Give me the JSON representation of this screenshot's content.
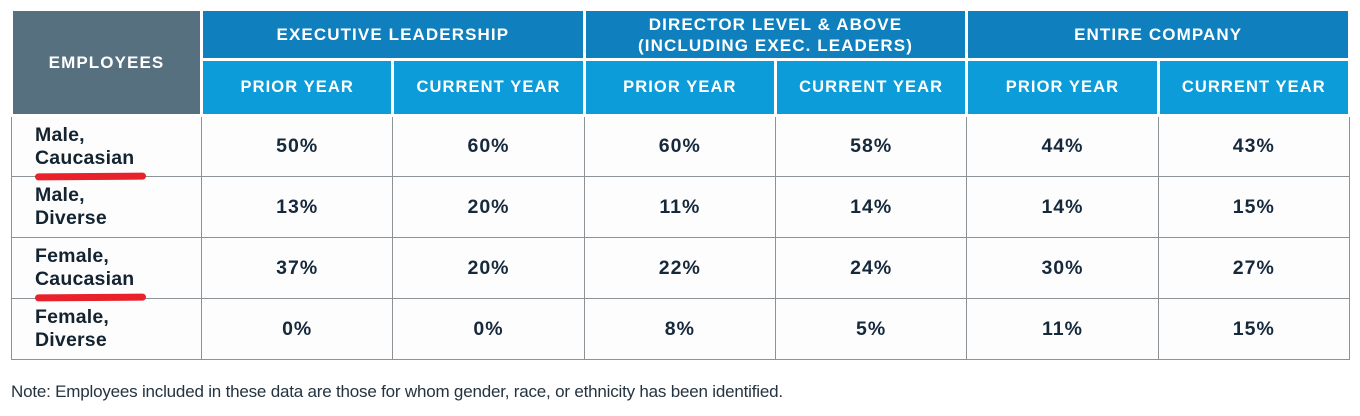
{
  "colors": {
    "row_header_bg": "#57707f",
    "group_header_bg": "#0f80bd",
    "sub_header_bg": "#0c9cd9",
    "header_text": "#ffffff",
    "body_text": "#16293b",
    "grid_border": "#8d9297",
    "underline_red": "#e8212b"
  },
  "table": {
    "row_header_label": "EMPLOYEES",
    "groups": [
      {
        "line1": "EXECUTIVE LEADERSHIP",
        "line2": ""
      },
      {
        "line1": "DIRECTOR LEVEL & ABOVE",
        "line2": "(INCLUDING EXEC. LEADERS)"
      },
      {
        "line1": "ENTIRE COMPANY",
        "line2": ""
      }
    ],
    "year_columns": [
      "PRIOR YEAR",
      "CURRENT YEAR"
    ],
    "rows": [
      {
        "label_line1": "Male,",
        "label_line2": "Caucasian",
        "underlined": true,
        "values": [
          "50%",
          "60%",
          "60%",
          "58%",
          "44%",
          "43%"
        ]
      },
      {
        "label_line1": "Male,",
        "label_line2": "Diverse",
        "underlined": false,
        "values": [
          "13%",
          "20%",
          "11%",
          "14%",
          "14%",
          "15%"
        ]
      },
      {
        "label_line1": "Female,",
        "label_line2": "Caucasian",
        "underlined": true,
        "values": [
          "37%",
          "20%",
          "22%",
          "24%",
          "30%",
          "27%"
        ]
      },
      {
        "label_line1": "Female,",
        "label_line2": "Diverse",
        "underlined": false,
        "values": [
          "0%",
          "0%",
          "8%",
          "5%",
          "11%",
          "15%"
        ]
      }
    ]
  },
  "note": "Note: Employees included in these data are those for whom gender, race, or ethnicity has been identified.",
  "chart_data": {
    "type": "table",
    "title": "",
    "row_header": "EMPLOYEES",
    "column_groups": [
      "EXECUTIVE LEADERSHIP",
      "DIRECTOR LEVEL & ABOVE (INCLUDING EXEC. LEADERS)",
      "ENTIRE COMPANY"
    ],
    "columns": [
      "PRIOR YEAR",
      "CURRENT YEAR",
      "PRIOR YEAR",
      "CURRENT YEAR",
      "PRIOR YEAR",
      "CURRENT YEAR"
    ],
    "categories": [
      "Male, Caucasian",
      "Male, Diverse",
      "Female, Caucasian",
      "Female, Diverse"
    ],
    "series": [
      {
        "name": "Executive Leadership - Prior Year",
        "values": [
          50,
          13,
          37,
          0
        ]
      },
      {
        "name": "Executive Leadership - Current Year",
        "values": [
          60,
          20,
          20,
          0
        ]
      },
      {
        "name": "Director Level & Above - Prior Year",
        "values": [
          60,
          11,
          22,
          8
        ]
      },
      {
        "name": "Director Level & Above - Current Year",
        "values": [
          58,
          14,
          24,
          5
        ]
      },
      {
        "name": "Entire Company - Prior Year",
        "values": [
          44,
          14,
          30,
          11
        ]
      },
      {
        "name": "Entire Company - Current Year",
        "values": [
          43,
          15,
          27,
          15
        ]
      }
    ]
  }
}
